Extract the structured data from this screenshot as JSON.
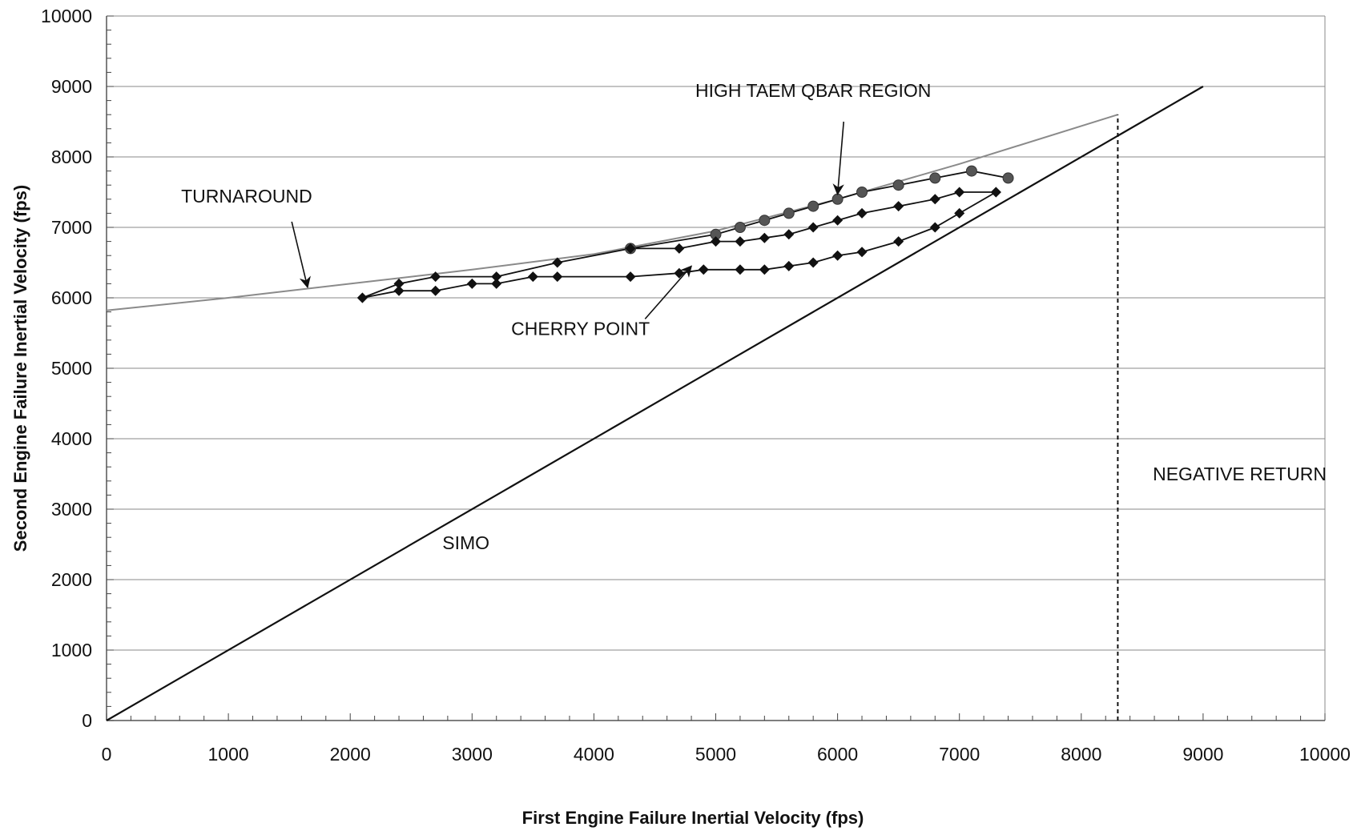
{
  "chart_data": {
    "type": "scatter",
    "title": "",
    "xlabel": "First Engine Failure Inertial Velocity (fps)",
    "ylabel": "Second Engine Failure Inertial Velocity (fps)",
    "xlim": [
      0,
      10000
    ],
    "ylim": [
      0,
      10000
    ],
    "x_ticks": [
      "0",
      "1000",
      "2000",
      "3000",
      "4000",
      "5000",
      "6000",
      "7000",
      "8000",
      "9000",
      "10000"
    ],
    "y_ticks": [
      "0",
      "1000",
      "2000",
      "3000",
      "4000",
      "5000",
      "6000",
      "7000",
      "8000",
      "9000",
      "10000"
    ],
    "grid": "horizontal",
    "series": [
      {
        "line_style": "solid-black",
        "x": [
          0,
          9000
        ],
        "y": [
          0,
          9000
        ]
      },
      {
        "line_style": "solid-gray",
        "x": [
          0,
          1000,
          2000,
          3000,
          4000,
          5000,
          6000,
          7000,
          8300
        ],
        "y": [
          5820,
          6000,
          6200,
          6400,
          6620,
          6950,
          7400,
          7900,
          8600
        ]
      },
      {
        "line_style": "dashed-black",
        "x": [
          8300,
          8300
        ],
        "y": [
          0,
          8600
        ]
      },
      {
        "marker": "circle",
        "x": [
          4300,
          5000,
          5200,
          5400,
          5600,
          5800,
          6000,
          6200,
          6500,
          6800,
          7100,
          7400
        ],
        "y": [
          6700,
          6900,
          7000,
          7100,
          7200,
          7300,
          7400,
          7500,
          7600,
          7700,
          7800,
          7700
        ]
      },
      {
        "marker": "diamond",
        "x": [
          2100,
          2400,
          2700,
          3200,
          3700,
          4300,
          4700,
          5000,
          5200,
          5400,
          5600,
          5800,
          6000,
          6200,
          6500,
          6800,
          7000,
          7300
        ],
        "y": [
          6000,
          6200,
          6300,
          6300,
          6500,
          6700,
          6700,
          6800,
          6800,
          6850,
          6900,
          7000,
          7100,
          7200,
          7300,
          7400,
          7500,
          7500
        ]
      },
      {
        "marker": "diamond",
        "x": [
          2100,
          2400,
          2700,
          3000,
          3200,
          3500,
          3700,
          4300,
          4700,
          4900,
          5200,
          5400,
          5600,
          5800,
          6000,
          6200,
          6500,
          6800,
          7000,
          7300
        ],
        "y": [
          6000,
          6100,
          6100,
          6200,
          6200,
          6300,
          6300,
          6300,
          6350,
          6400,
          6400,
          6400,
          6450,
          6500,
          6600,
          6650,
          6800,
          7000,
          7200,
          7500
        ]
      }
    ],
    "annotations": [
      {
        "text": "HIGH TAEM QBAR REGION",
        "x": 5800,
        "y": 8850,
        "arrow_to": [
          6000,
          7470
        ],
        "arrow_from": [
          6050,
          8500
        ]
      },
      {
        "text": "TURNAROUND",
        "x": 1150,
        "y": 7350,
        "arrow_to": [
          1650,
          6150
        ],
        "arrow_from": [
          1520,
          7080
        ]
      },
      {
        "text": "CHERRY POINT",
        "x": 3890,
        "y": 5470,
        "arrow_to": [
          4800,
          6450
        ],
        "arrow_from": [
          4420,
          5700
        ]
      },
      {
        "text": "NEGATIVE RETURN",
        "x": 9300,
        "y": 3410
      },
      {
        "text": "SIMO",
        "x": 2950,
        "y": 2430
      }
    ]
  }
}
